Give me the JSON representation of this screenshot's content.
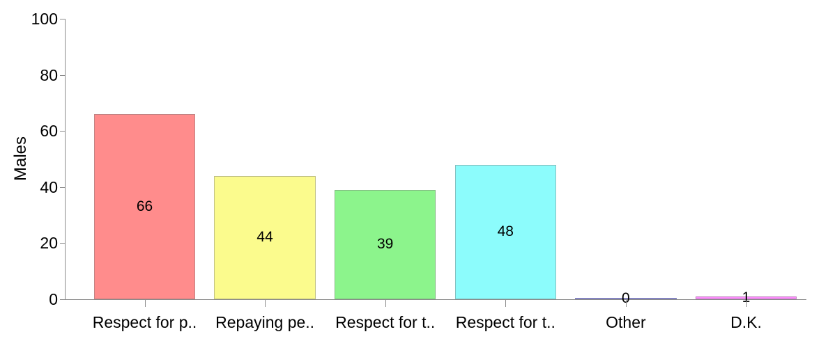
{
  "chart_data": {
    "type": "bar",
    "title": "",
    "xlabel": "",
    "ylabel": "Males",
    "categories": [
      "Respect for p..",
      "Repaying pe..",
      "Respect for t..",
      "Respect for t..",
      "Other",
      "D.K."
    ],
    "values": [
      66,
      44,
      39,
      48,
      0,
      1
    ],
    "value_labels": [
      "66",
      "44",
      "39",
      "48",
      "0",
      "1"
    ],
    "bar_colors": [
      "#ff8c8c",
      "#fbfb8d",
      "#8cf48c",
      "#8cfcfc",
      "#8c8cfc",
      "#fc8cfc"
    ],
    "bar_border_colors": [
      "#c28383",
      "#c0c083",
      "#83bc83",
      "#83c0c0",
      "#8383c0",
      "#c083c0"
    ],
    "ylim": [
      0,
      100
    ],
    "yticks": [
      0,
      20,
      40,
      60,
      80,
      100
    ],
    "ytick_labels": [
      "0",
      "20",
      "40",
      "60",
      "80",
      "100"
    ],
    "grid": false,
    "legend": null,
    "axis_color": "#8a8a8a",
    "text_color": "#000000",
    "background_color": "#ffffff"
  }
}
